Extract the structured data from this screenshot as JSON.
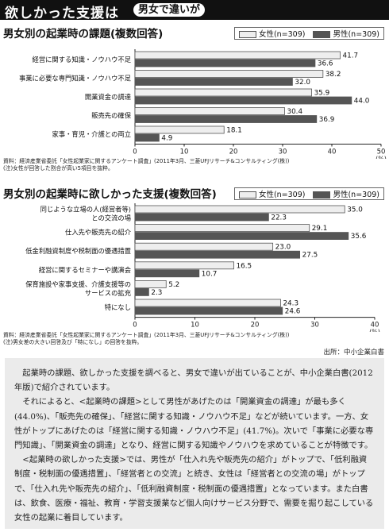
{
  "banner": {
    "title": "欲しかった支援は",
    "tag": "男女で違いが"
  },
  "legend": {
    "female": "女性(n=309)",
    "male": "男性(n=309)"
  },
  "chart_data": [
    {
      "type": "bar",
      "title": "男女別の起業時の課題(複数回答)",
      "categories": [
        "経営に関する知識・ノウハウ不足",
        "事業に必要な専門知識・ノウハウ不足",
        "開業資金の調達",
        "販売先の確保",
        "家事・育児・介護との両立"
      ],
      "series": [
        {
          "name": "女性(n=309)",
          "values": [
            41.7,
            38.2,
            35.9,
            30.4,
            18.1
          ],
          "color": "#eeeeee"
        },
        {
          "name": "男性(n=309)",
          "values": [
            36.6,
            32.0,
            44.0,
            36.9,
            4.9
          ],
          "color": "#555555"
        }
      ],
      "xlim": [
        0,
        50
      ],
      "ticks": [
        "0",
        "10",
        "20",
        "30",
        "40",
        "50"
      ],
      "unit": "(%)",
      "grid": false,
      "notes": [
        "資料：経済産業省委託「女性起業家に関するアンケート調査」(2011年3月、三菱UFJリサーチ&コンサルティング(株))",
        "(注)女性が回答した割合が高い5項目を抜粋。"
      ]
    },
    {
      "type": "bar",
      "title": "男女別の起業時に欲しかった支援(複数回答)",
      "categories": [
        "同じような立場の人(経営者等)\nとの交流の場",
        "仕入先や販売先の紹介",
        "低金利融資制度や税制面の優遇措置",
        "経営に関するセミナーや講演会",
        "保育施設や家事支援、介護支援等の\nサービスの拡充",
        "特になし"
      ],
      "series": [
        {
          "name": "女性(n=309)",
          "values": [
            35.0,
            29.1,
            23.0,
            16.5,
            5.2,
            24.3
          ],
          "color": "#eeeeee"
        },
        {
          "name": "男性(n=309)",
          "values": [
            22.3,
            35.6,
            27.5,
            10.7,
            2.3,
            24.6
          ],
          "color": "#555555"
        }
      ],
      "xlim": [
        0,
        40
      ],
      "ticks": [
        "0",
        "10",
        "20",
        "30",
        "40"
      ],
      "unit": "(%)",
      "grid": false,
      "notes": [
        "資料：経済産業省委託「女性起業家に関するアンケート調査」(2011年3月、三菱UFJリサーチ&コンサルティング(株))",
        "(注)男女差の大きい回答及び「特になし」の回答を抜粋。"
      ]
    }
  ],
  "source": "出所：中小企業白書",
  "description": [
    "起業時の課題、欲しかった支援を調べると、男女で違いが出ていることが、中小企業白書(2012年版)で紹介されています。",
    "それによると、<起業時の課題>として男性があげたのは「開業資金の調達」が最も多く(44.0%)、「販売先の確保」、「経営に関する知識・ノウハウ不足」などが続いています。一方、女性がトップにあげたのは「経営に関する知識・ノウハウ不足」(41.7%)。次いで「事業に必要な専門知識」、「開業資金の調達」となり、経営に関する知識やノウハウを求めていることが特徴です。",
    "<起業時の欲しかった支援>では、男性が「仕入れ先や販売先の紹介」がトップで、「低利融資制度・税制面の優遇措置」、「経営者との交流」と続き、女性は「経営者との交流の場」がトップで、「仕入れ先や販売先の紹介」、「低利融資制度・税制面の優遇措置」となっています。また白書は、飲食、医療・福祉、教育・学習支援業など個人向けサービス分野で、需要を掘り起こしている女性の起業に着目しています。"
  ]
}
